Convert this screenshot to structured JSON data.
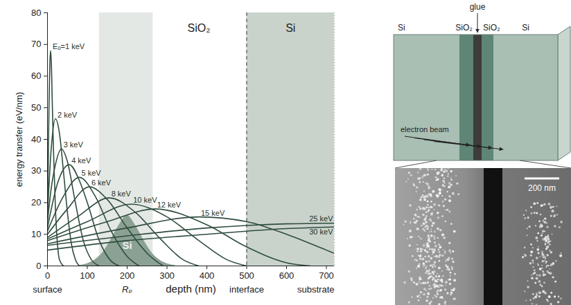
{
  "chart_data": {
    "type": "line",
    "xlabel": "depth (nm)",
    "ylabel": "energy transfer (eV/nm)",
    "xlim": [
      0,
      720
    ],
    "xticks": [
      0,
      100,
      200,
      300,
      400,
      500,
      600,
      700
    ],
    "ylim": [
      0,
      80
    ],
    "yticks": [
      0,
      10,
      20,
      30,
      40,
      50,
      60,
      70,
      80
    ],
    "grid": false,
    "color": "#2f4d3e",
    "series": [
      {
        "name": "Eₒ=1 keV",
        "x": [
          0,
          2,
          4,
          6,
          8,
          10,
          12,
          15,
          20,
          25,
          30,
          40
        ],
        "values": [
          15,
          33,
          52,
          64,
          68,
          63,
          52,
          37,
          18,
          7,
          2,
          0
        ]
      },
      {
        "name": "2 keV",
        "x": [
          0,
          10,
          20,
          30,
          40,
          50,
          60,
          70,
          80
        ],
        "values": [
          16,
          38,
          46.5,
          42,
          30,
          17,
          7,
          2,
          0
        ]
      },
      {
        "name": "3 keV",
        "x": [
          0,
          10,
          20,
          35,
          50,
          70,
          90,
          110,
          130
        ],
        "values": [
          14,
          25,
          32,
          37,
          33,
          20,
          8,
          2,
          0
        ]
      },
      {
        "name": "4 keV",
        "x": [
          0,
          25,
          40,
          55,
          80,
          100,
          130,
          160,
          180
        ],
        "values": [
          12,
          26,
          30.5,
          32,
          27,
          20,
          8,
          1.5,
          0
        ]
      },
      {
        "name": "5 keV",
        "x": [
          0,
          40,
          80,
          120,
          160,
          200,
          230
        ],
        "values": [
          11,
          22,
          28,
          22,
          11,
          3,
          0
        ]
      },
      {
        "name": "6 keV",
        "x": [
          0,
          50,
          105,
          150,
          200,
          250,
          290
        ],
        "values": [
          10,
          18,
          25,
          21,
          12,
          4,
          0
        ]
      },
      {
        "name": "8 keV",
        "x": [
          0,
          75,
          155,
          220,
          280,
          340,
          380
        ],
        "values": [
          9,
          15.5,
          21.5,
          17,
          9,
          2,
          0
        ]
      },
      {
        "name": "10 keV",
        "x": [
          0,
          100,
          210,
          300,
          380,
          450,
          500
        ],
        "values": [
          8.5,
          14,
          19.5,
          15.5,
          8,
          2,
          0
        ]
      },
      {
        "name": "12 keV",
        "x": [
          0,
          150,
          270,
          400,
          500,
          600,
          660
        ],
        "values": [
          8,
          14,
          18,
          13,
          6,
          1,
          0
        ]
      },
      {
        "name": "15 keV",
        "x": [
          0,
          200,
          380,
          500,
          600,
          700,
          720
        ],
        "values": [
          7,
          12,
          15.5,
          14,
          10,
          5,
          4
        ]
      },
      {
        "name": "25 keV",
        "x": [
          0,
          200,
          400,
          500,
          600,
          720
        ],
        "values": [
          6.5,
          9.5,
          12,
          12.8,
          13.3,
          13.5
        ]
      },
      {
        "name": "30 keV",
        "x": [
          0,
          200,
          400,
          500,
          600,
          720
        ],
        "values": [
          5,
          8,
          10,
          11,
          11.8,
          12.3
        ]
      }
    ],
    "regions": [
      {
        "label": "SiO₂",
        "x": [
          0,
          500
        ],
        "color": "#ffffff"
      },
      {
        "label": "Si",
        "x": [
          500,
          720
        ],
        "color": "#c9d3cc"
      }
    ],
    "implant_zone": {
      "x": [
        130,
        265
      ],
      "color": "#93a39a"
    },
    "implant_profile": {
      "label": "Si",
      "x": [
        80,
        100,
        120,
        140,
        160,
        180,
        200,
        220,
        240,
        260,
        280,
        300,
        320
      ],
      "values": [
        0.2,
        0.7,
        2,
        4.5,
        8.5,
        13,
        16,
        13,
        8.5,
        4.5,
        2,
        0.7,
        0.2
      ],
      "color": "#8ba194"
    },
    "x_annotations": [
      {
        "x": 0,
        "label": "surface"
      },
      {
        "x": 200,
        "label": "Rₚ"
      },
      {
        "x": 500,
        "label": "interface"
      },
      {
        "x": 720,
        "label": "substrate"
      }
    ]
  },
  "diagram": {
    "layers": [
      {
        "label": "Si",
        "color": "#a9bfb4"
      },
      {
        "label": "SiO₂",
        "color": "#5f8576"
      },
      {
        "label": "glue",
        "color": "#3e3b3b"
      },
      {
        "label": "SiO₂",
        "color": "#5f8576"
      },
      {
        "label": "Si",
        "color": "#a9bfb4"
      }
    ],
    "beam_label": "electron beam"
  },
  "micrograph": {
    "scale_bar": "200 nm"
  }
}
